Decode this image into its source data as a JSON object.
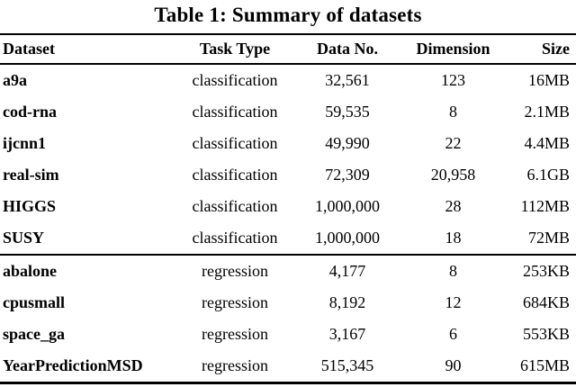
{
  "caption": "Table 1: Summary of datasets",
  "colors": {
    "text": "#000000",
    "background": "#ffffff",
    "rule": "#000000"
  },
  "table": {
    "headers": {
      "dataset": "Dataset",
      "task_type": "Task Type",
      "data_no": "Data No.",
      "dimension": "Dimension",
      "size": "Size"
    },
    "rows": [
      {
        "dataset": "a9a",
        "task_type": "classification",
        "data_no": "32,561",
        "dimension": "123",
        "size": "16MB"
      },
      {
        "dataset": "cod-rna",
        "task_type": "classification",
        "data_no": "59,535",
        "dimension": "8",
        "size": "2.1MB"
      },
      {
        "dataset": "ijcnn1",
        "task_type": "classification",
        "data_no": "49,990",
        "dimension": "22",
        "size": "4.4MB"
      },
      {
        "dataset": "real-sim",
        "task_type": "classification",
        "data_no": "72,309",
        "dimension": "20,958",
        "size": "6.1GB"
      },
      {
        "dataset": "HIGGS",
        "task_type": "classification",
        "data_no": "1,000,000",
        "dimension": "28",
        "size": "112MB"
      },
      {
        "dataset": "SUSY",
        "task_type": "classification",
        "data_no": "1,000,000",
        "dimension": "18",
        "size": "72MB"
      },
      {
        "dataset": "abalone",
        "task_type": "regression",
        "data_no": "4,177",
        "dimension": "8",
        "size": "253KB"
      },
      {
        "dataset": "cpusmall",
        "task_type": "regression",
        "data_no": "8,192",
        "dimension": "12",
        "size": "684KB"
      },
      {
        "dataset": "space_ga",
        "task_type": "regression",
        "data_no": "3,167",
        "dimension": "6",
        "size": "553KB"
      },
      {
        "dataset": "YearPredictionMSD",
        "task_type": "regression",
        "data_no": "515,345",
        "dimension": "90",
        "size": "615MB"
      }
    ]
  }
}
